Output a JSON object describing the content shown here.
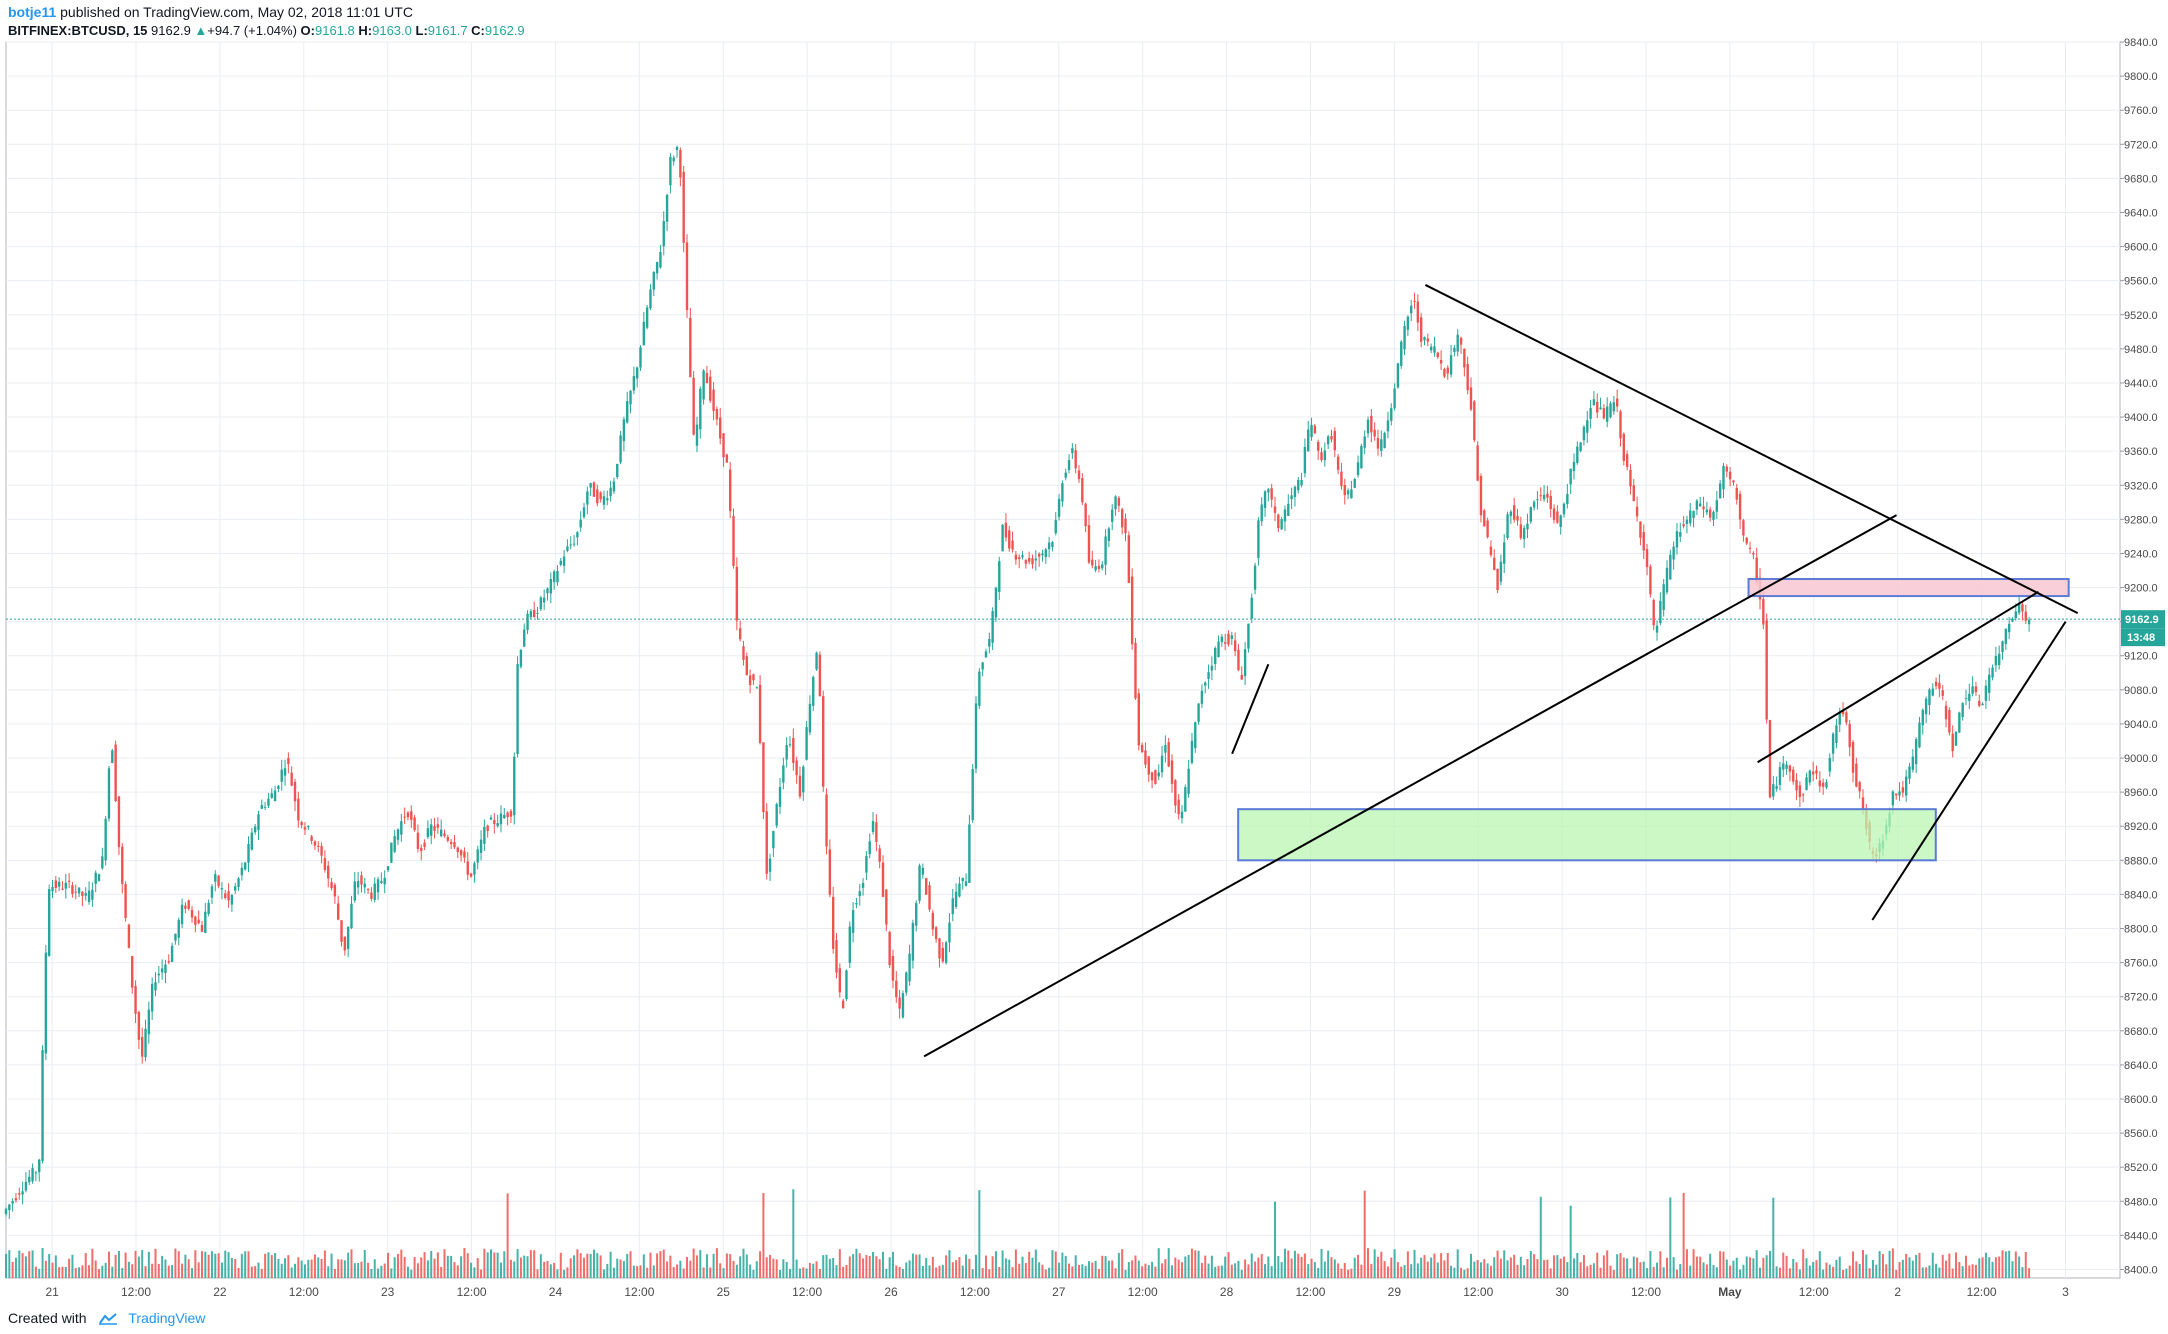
{
  "header": {
    "user": "botje11",
    "published": "published on TradingView.com, May 02, 2018 11:01 UTC"
  },
  "ohlc": {
    "symbol": "BITFINEX:BTCUSD, 15",
    "last": "9162.9",
    "change_arrow": "▲",
    "change": "+94.7 (+1.04%)",
    "o_label": "O:",
    "o": "9161.8",
    "h_label": "H:",
    "h": "9163.0",
    "l_label": "L:",
    "l": "9161.7",
    "c_label": "C:",
    "c": "9162.9"
  },
  "footer": {
    "created_with": "Created with",
    "brand": "TradingView"
  },
  "colors": {
    "up": "#26a69a",
    "down": "#ef5350",
    "grid": "#e9edf2",
    "trendline": "#000000",
    "support_zone_fill": "#b9f6b0",
    "support_zone_border": "#5b7bd5",
    "resistance_zone_fill": "#f8c8d4",
    "resistance_zone_border": "#5b7bd5",
    "price_label": "#26a69a"
  },
  "chart_data": {
    "type": "candlestick",
    "symbol": "BITFINEX:BTCUSD",
    "interval": "15",
    "x_ticks": [
      "21",
      "12:00",
      "22",
      "12:00",
      "23",
      "12:00",
      "24",
      "12:00",
      "25",
      "12:00",
      "26",
      "12:00",
      "27",
      "12:00",
      "28",
      "12:00",
      "29",
      "12:00",
      "30",
      "12:00",
      "May",
      "12:00",
      "2",
      "12:00",
      "3"
    ],
    "y_ticks": [
      8400.0,
      8440.0,
      8480.0,
      8520.0,
      8560.0,
      8600.0,
      8640.0,
      8680.0,
      8720.0,
      8760.0,
      8800.0,
      8840.0,
      8880.0,
      8920.0,
      8960.0,
      9000.0,
      9040.0,
      9080.0,
      9120.0,
      9160.0,
      9200.0,
      9240.0,
      9280.0,
      9320.0,
      9360.0,
      9400.0,
      9440.0,
      9480.0,
      9520.0,
      9560.0,
      9600.0,
      9640.0,
      9680.0,
      9720.0,
      9760.0,
      9800.0,
      9840.0
    ],
    "ylim": [
      8390,
      9840
    ],
    "last_price": 9162.9,
    "countdown": "13:48",
    "price_path": [
      [
        0,
        8465
      ],
      [
        0.8,
        8505
      ],
      [
        1.2,
        8520
      ],
      [
        1.5,
        8850
      ],
      [
        2.2,
        8850
      ],
      [
        2.8,
        8835
      ],
      [
        3.3,
        8880
      ],
      [
        3.6,
        9030
      ],
      [
        3.9,
        8870
      ],
      [
        4.3,
        8730
      ],
      [
        4.6,
        8645
      ],
      [
        5.0,
        8740
      ],
      [
        5.5,
        8765
      ],
      [
        6.0,
        8830
      ],
      [
        6.6,
        8800
      ],
      [
        7.0,
        8860
      ],
      [
        7.5,
        8830
      ],
      [
        8.0,
        8875
      ],
      [
        8.5,
        8940
      ],
      [
        9.0,
        8960
      ],
      [
        9.4,
        9000
      ],
      [
        9.8,
        8930
      ],
      [
        10.2,
        8910
      ],
      [
        10.6,
        8880
      ],
      [
        11.0,
        8835
      ],
      [
        11.3,
        8770
      ],
      [
        11.7,
        8860
      ],
      [
        12.2,
        8840
      ],
      [
        12.6,
        8860
      ],
      [
        13.0,
        8910
      ],
      [
        13.4,
        8940
      ],
      [
        13.8,
        8890
      ],
      [
        14.2,
        8920
      ],
      [
        14.6,
        8910
      ],
      [
        15.0,
        8900
      ],
      [
        15.5,
        8860
      ],
      [
        16.0,
        8920
      ],
      [
        16.5,
        8930
      ],
      [
        16.9,
        8940
      ],
      [
        17.0,
        9100
      ],
      [
        17.3,
        9160
      ],
      [
        17.7,
        9175
      ],
      [
        18.1,
        9200
      ],
      [
        18.6,
        9240
      ],
      [
        19.0,
        9260
      ],
      [
        19.4,
        9320
      ],
      [
        19.8,
        9300
      ],
      [
        20.2,
        9320
      ],
      [
        20.6,
        9400
      ],
      [
        21.0,
        9460
      ],
      [
        21.4,
        9540
      ],
      [
        21.8,
        9600
      ],
      [
        22.1,
        9700
      ],
      [
        22.4,
        9720
      ],
      [
        22.6,
        9560
      ],
      [
        22.9,
        9360
      ],
      [
        23.2,
        9460
      ],
      [
        23.6,
        9400
      ],
      [
        24.0,
        9340
      ],
      [
        24.3,
        9160
      ],
      [
        24.6,
        9100
      ],
      [
        25.0,
        9080
      ],
      [
        25.3,
        8860
      ],
      [
        25.7,
        8960
      ],
      [
        26.0,
        9030
      ],
      [
        26.4,
        8960
      ],
      [
        26.7,
        9060
      ],
      [
        27.0,
        9140
      ],
      [
        27.2,
        8930
      ],
      [
        27.5,
        8780
      ],
      [
        27.8,
        8700
      ],
      [
        28.1,
        8820
      ],
      [
        28.5,
        8860
      ],
      [
        28.8,
        8930
      ],
      [
        29.1,
        8860
      ],
      [
        29.4,
        8750
      ],
      [
        29.7,
        8700
      ],
      [
        30.0,
        8760
      ],
      [
        30.4,
        8880
      ],
      [
        30.8,
        8800
      ],
      [
        31.1,
        8760
      ],
      [
        31.5,
        8840
      ],
      [
        31.9,
        8860
      ],
      [
        32.3,
        9100
      ],
      [
        32.7,
        9140
      ],
      [
        33.1,
        9270
      ],
      [
        33.5,
        9240
      ],
      [
        34.0,
        9230
      ],
      [
        34.4,
        9240
      ],
      [
        34.8,
        9260
      ],
      [
        35.1,
        9330
      ],
      [
        35.4,
        9360
      ],
      [
        35.7,
        9320
      ],
      [
        36.0,
        9220
      ],
      [
        36.4,
        9230
      ],
      [
        36.8,
        9310
      ],
      [
        37.2,
        9260
      ],
      [
        37.6,
        9020
      ],
      [
        37.9,
        8990
      ],
      [
        38.2,
        8970
      ],
      [
        38.5,
        9020
      ],
      [
        38.8,
        8950
      ],
      [
        39.0,
        8920
      ],
      [
        39.3,
        9000
      ],
      [
        39.7,
        9080
      ],
      [
        40.0,
        9110
      ],
      [
        40.3,
        9140
      ],
      [
        40.7,
        9140
      ],
      [
        41.0,
        9090
      ],
      [
        41.3,
        9170
      ],
      [
        41.6,
        9280
      ],
      [
        41.9,
        9320
      ],
      [
        42.2,
        9270
      ],
      [
        42.6,
        9300
      ],
      [
        43.0,
        9330
      ],
      [
        43.3,
        9400
      ],
      [
        43.6,
        9350
      ],
      [
        44.0,
        9380
      ],
      [
        44.4,
        9300
      ],
      [
        44.8,
        9330
      ],
      [
        45.2,
        9400
      ],
      [
        45.6,
        9360
      ],
      [
        46.0,
        9420
      ],
      [
        46.4,
        9500
      ],
      [
        46.7,
        9540
      ],
      [
        47.0,
        9490
      ],
      [
        47.4,
        9480
      ],
      [
        47.8,
        9450
      ],
      [
        48.2,
        9500
      ],
      [
        48.6,
        9420
      ],
      [
        48.9,
        9300
      ],
      [
        49.2,
        9250
      ],
      [
        49.5,
        9200
      ],
      [
        49.9,
        9300
      ],
      [
        50.3,
        9260
      ],
      [
        50.7,
        9300
      ],
      [
        51.1,
        9310
      ],
      [
        51.5,
        9270
      ],
      [
        51.9,
        9330
      ],
      [
        52.3,
        9380
      ],
      [
        52.6,
        9420
      ],
      [
        53.0,
        9400
      ],
      [
        53.4,
        9420
      ],
      [
        53.7,
        9350
      ],
      [
        54.0,
        9300
      ],
      [
        54.4,
        9240
      ],
      [
        54.7,
        9140
      ],
      [
        55.0,
        9200
      ],
      [
        55.4,
        9260
      ],
      [
        55.8,
        9280
      ],
      [
        56.2,
        9300
      ],
      [
        56.6,
        9280
      ],
      [
        57.0,
        9340
      ],
      [
        57.4,
        9310
      ],
      [
        57.7,
        9250
      ],
      [
        58.0,
        9230
      ],
      [
        58.3,
        9160
      ],
      [
        58.5,
        8950
      ],
      [
        58.8,
        8980
      ],
      [
        59.1,
        9000
      ],
      [
        59.5,
        8950
      ],
      [
        59.9,
        8990
      ],
      [
        60.3,
        8960
      ],
      [
        60.7,
        9040
      ],
      [
        61.0,
        9060
      ],
      [
        61.3,
        8980
      ],
      [
        61.6,
        8940
      ],
      [
        61.9,
        8880
      ],
      [
        62.2,
        8900
      ],
      [
        62.6,
        8960
      ],
      [
        62.9,
        8960
      ],
      [
        63.2,
        8990
      ],
      [
        63.6,
        9060
      ],
      [
        64.0,
        9090
      ],
      [
        64.3,
        9060
      ],
      [
        64.6,
        9010
      ],
      [
        64.9,
        9070
      ],
      [
        65.2,
        9080
      ],
      [
        65.5,
        9060
      ],
      [
        65.8,
        9100
      ],
      [
        66.1,
        9120
      ],
      [
        66.4,
        9160
      ],
      [
        66.7,
        9180
      ],
      [
        66.9,
        9170
      ],
      [
        67.0,
        9162.9
      ]
    ],
    "volume_profile": [
      [
        0,
        30
      ],
      [
        1.5,
        60
      ],
      [
        3.6,
        50
      ],
      [
        4.6,
        40
      ],
      [
        9.0,
        45
      ],
      [
        17.0,
        70
      ],
      [
        19.6,
        40
      ],
      [
        22.4,
        60
      ],
      [
        24.4,
        40
      ],
      [
        25.3,
        55
      ],
      [
        27.5,
        35
      ],
      [
        32.3,
        30
      ],
      [
        37.6,
        35
      ],
      [
        42.5,
        220
      ],
      [
        47.0,
        40
      ],
      [
        49.5,
        30
      ],
      [
        54.7,
        20
      ],
      [
        58.5,
        40
      ],
      [
        61.9,
        30
      ],
      [
        67.0,
        15
      ]
    ],
    "drawings": {
      "support_zone": {
        "price_low": 8880,
        "price_high": 8940,
        "x_from": 40.8,
        "x_to": 63.9
      },
      "resistance_zone": {
        "price_low": 9190,
        "price_high": 9210,
        "x_from": 57.7,
        "x_to": 68.3
      },
      "trendlines": [
        {
          "from": [
            30.4,
            8650
          ],
          "to": [
            62.6,
            9285
          ]
        },
        {
          "from": [
            47.0,
            9555
          ],
          "to": [
            68.6,
            9170
          ]
        },
        {
          "from": [
            58.0,
            8995
          ],
          "to": [
            67.3,
            9195
          ]
        },
        {
          "from": [
            61.8,
            8810
          ],
          "to": [
            68.2,
            9160
          ]
        },
        {
          "from": [
            40.6,
            9005
          ],
          "to": [
            41.8,
            9110
          ]
        }
      ]
    }
  }
}
